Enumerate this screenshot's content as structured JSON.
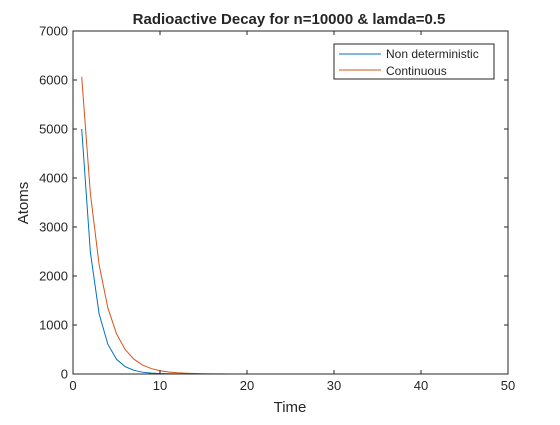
{
  "chart_data": {
    "type": "line",
    "title": "Radioactive Decay for n=10000 & lamda=0.5",
    "xlabel": "Time",
    "ylabel": "Atoms",
    "xlim": [
      0,
      50
    ],
    "ylim": [
      0,
      7000
    ],
    "xticks": [
      0,
      10,
      20,
      30,
      40,
      50
    ],
    "yticks": [
      0,
      1000,
      2000,
      3000,
      4000,
      5000,
      6000,
      7000
    ],
    "grid": false,
    "legend_position": "top-right",
    "series": [
      {
        "name": "Non deterministic",
        "color": "#0072BD",
        "x": [
          1,
          2,
          3,
          4,
          5,
          6,
          7,
          8,
          9,
          10,
          11,
          12,
          13,
          14,
          15,
          16,
          17,
          18,
          19,
          20,
          21,
          22,
          23,
          24,
          25,
          26,
          27,
          28,
          29,
          30,
          31,
          32,
          33,
          34,
          35,
          36,
          37,
          38,
          39,
          40,
          41,
          42,
          43,
          44,
          45,
          46,
          47,
          48,
          49,
          50
        ],
        "y": [
          5000,
          2480,
          1230,
          610,
          300,
          150,
          75,
          37,
          18,
          9,
          4,
          2,
          1,
          0,
          0,
          0,
          0,
          0,
          0,
          0,
          0,
          0,
          0,
          0,
          0,
          0,
          0,
          0,
          0,
          0,
          0,
          0,
          0,
          0,
          0,
          0,
          0,
          0,
          0,
          0,
          0,
          0,
          0,
          0,
          0,
          0,
          0,
          0,
          0,
          0
        ]
      },
      {
        "name": "Continuous",
        "color": "#D95319",
        "x": [
          1,
          2,
          3,
          4,
          5,
          6,
          7,
          8,
          9,
          10,
          11,
          12,
          13,
          14,
          15,
          16,
          17,
          18,
          19,
          20,
          21,
          22,
          23,
          24,
          25,
          26,
          27,
          28,
          29,
          30,
          31,
          32,
          33,
          34,
          35,
          36,
          37,
          38,
          39,
          40,
          41,
          42,
          43,
          44,
          45,
          46,
          47,
          48,
          49,
          50
        ],
        "y": [
          6065,
          3679,
          2231,
          1353,
          821,
          498,
          302,
          183,
          111,
          67,
          41,
          25,
          15,
          9,
          6,
          3,
          2,
          1,
          1,
          0,
          0,
          0,
          0,
          0,
          0,
          0,
          0,
          0,
          0,
          0,
          0,
          0,
          0,
          0,
          0,
          0,
          0,
          0,
          0,
          0,
          0,
          0,
          0,
          0,
          0,
          0,
          0,
          0,
          0,
          0
        ]
      }
    ]
  }
}
